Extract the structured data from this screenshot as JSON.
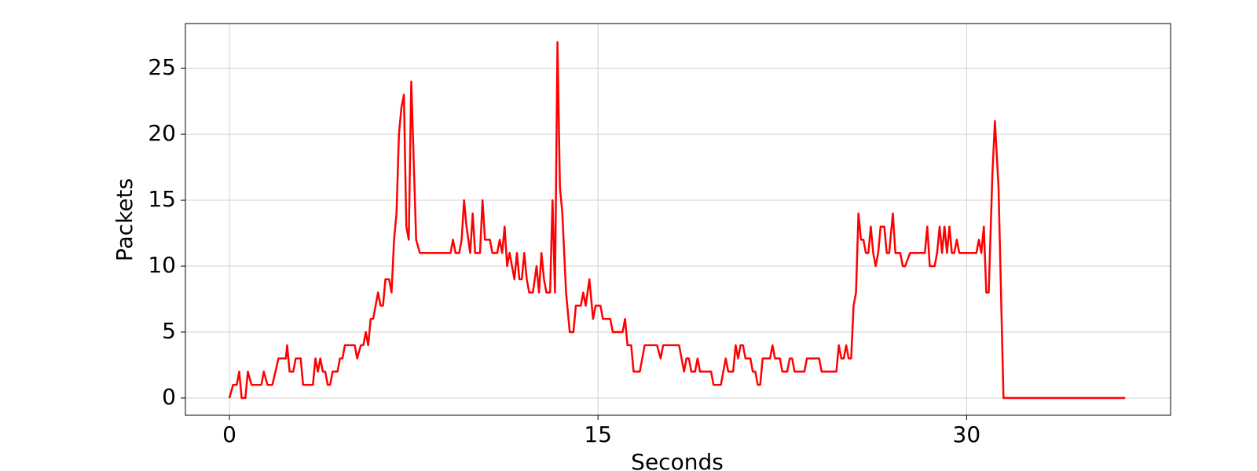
{
  "chart_data": {
    "type": "line",
    "xlabel": "Seconds",
    "ylabel": "Packets",
    "xlim": [
      -1.79,
      38.3
    ],
    "ylim": [
      -1.31,
      28.4
    ],
    "xticks": [
      0,
      15,
      30
    ],
    "yticks": [
      0,
      5,
      10,
      15,
      20,
      25
    ],
    "grid": true,
    "x": [
      0,
      0.15,
      0.3,
      0.4,
      0.5,
      0.65,
      0.75,
      0.9,
      1.3,
      1.4,
      1.55,
      1.75,
      2.0,
      2.3,
      2.35,
      2.45,
      2.6,
      2.7,
      2.9,
      3.0,
      3.4,
      3.5,
      3.6,
      3.7,
      3.8,
      3.9,
      4.0,
      4.1,
      4.2,
      4.4,
      4.5,
      4.6,
      4.7,
      5.1,
      5.2,
      5.35,
      5.45,
      5.55,
      5.65,
      5.75,
      5.85,
      6.05,
      6.15,
      6.25,
      6.35,
      6.5,
      6.6,
      6.7,
      6.8,
      6.9,
      7.0,
      7.1,
      7.2,
      7.3,
      7.4,
      7.6,
      7.75,
      9.0,
      9.1,
      9.2,
      9.35,
      9.45,
      9.55,
      9.65,
      9.8,
      9.9,
      10.0,
      10.2,
      10.3,
      10.4,
      10.6,
      10.7,
      10.9,
      11.0,
      11.1,
      11.2,
      11.3,
      11.4,
      11.6,
      11.7,
      11.8,
      11.9,
      12.0,
      12.1,
      12.2,
      12.35,
      12.5,
      12.6,
      12.7,
      12.8,
      12.9,
      13.05,
      13.15,
      13.25,
      13.35,
      13.45,
      13.55,
      13.7,
      13.85,
      14.0,
      14.1,
      14.3,
      14.4,
      14.5,
      14.65,
      14.8,
      14.9,
      15.1,
      15.2,
      15.5,
      15.6,
      16.0,
      16.1,
      16.2,
      16.35,
      16.45,
      16.7,
      16.9,
      17.4,
      17.55,
      17.65,
      18.3,
      18.5,
      18.6,
      18.7,
      18.8,
      18.95,
      19.05,
      19.15,
      19.6,
      19.7,
      20.0,
      20.2,
      20.3,
      20.5,
      20.6,
      20.7,
      20.8,
      20.9,
      21.0,
      21.2,
      21.3,
      21.4,
      21.5,
      21.6,
      21.7,
      22.0,
      22.1,
      22.2,
      22.4,
      22.5,
      22.7,
      22.8,
      22.9,
      23.0,
      23.4,
      23.5,
      24.0,
      24.1,
      24.7,
      24.8,
      24.9,
      25.0,
      25.1,
      25.2,
      25.3,
      25.4,
      25.5,
      25.6,
      25.7,
      25.8,
      25.9,
      26.0,
      26.1,
      26.2,
      26.3,
      26.4,
      26.5,
      26.65,
      26.75,
      26.85,
      27.0,
      27.1,
      27.3,
      27.4,
      27.5,
      27.7,
      28.3,
      28.4,
      28.5,
      28.7,
      28.8,
      28.9,
      29.0,
      29.1,
      29.2,
      29.3,
      29.4,
      29.5,
      29.6,
      29.7,
      30.4,
      30.5,
      30.6,
      30.7,
      30.8,
      30.9,
      31.05,
      31.15,
      31.3,
      31.5,
      36.45
    ],
    "series": [
      {
        "name": "Packets",
        "color": "#ff0000",
        "values": [
          0,
          1,
          1,
          2,
          0,
          0,
          2,
          1,
          1,
          2,
          1,
          1,
          3,
          3,
          4,
          2,
          2,
          3,
          3,
          1,
          1,
          3,
          2,
          3,
          2,
          2,
          1,
          1,
          2,
          2,
          3,
          3,
          4,
          4,
          3,
          4,
          4,
          5,
          4,
          6,
          6,
          8,
          7,
          7,
          9,
          9,
          8,
          12,
          14,
          20,
          22,
          23,
          13,
          12,
          24,
          12,
          11,
          11,
          12,
          11,
          11,
          12,
          15,
          13,
          11,
          14,
          11,
          11,
          15,
          12,
          12,
          11,
          11,
          12,
          11,
          13,
          10,
          11,
          9,
          11,
          9,
          9,
          11,
          9,
          8,
          8,
          10,
          8,
          11,
          9,
          8,
          8,
          15,
          8,
          27,
          16,
          14,
          8,
          5,
          5,
          7,
          7,
          8,
          7,
          9,
          6,
          7,
          7,
          6,
          6,
          5,
          5,
          6,
          4,
          4,
          2,
          2,
          4,
          4,
          3,
          4,
          4,
          2,
          3,
          3,
          2,
          2,
          3,
          2,
          2,
          1,
          1,
          3,
          2,
          2,
          4,
          3,
          4,
          4,
          3,
          3,
          2,
          2,
          1,
          1,
          3,
          3,
          4,
          3,
          3,
          2,
          2,
          3,
          3,
          2,
          2,
          3,
          3,
          2,
          2,
          4,
          3,
          3,
          4,
          3,
          3,
          7,
          8,
          14,
          12,
          12,
          11,
          11,
          13,
          11,
          10,
          11,
          13,
          13,
          11,
          11,
          14,
          11,
          11,
          10,
          10,
          11,
          11,
          13,
          10,
          10,
          11,
          13,
          11,
          13,
          11,
          13,
          11,
          11,
          12,
          11,
          11,
          12,
          11,
          13,
          8,
          8,
          17,
          21,
          16,
          0,
          0
        ]
      }
    ]
  }
}
